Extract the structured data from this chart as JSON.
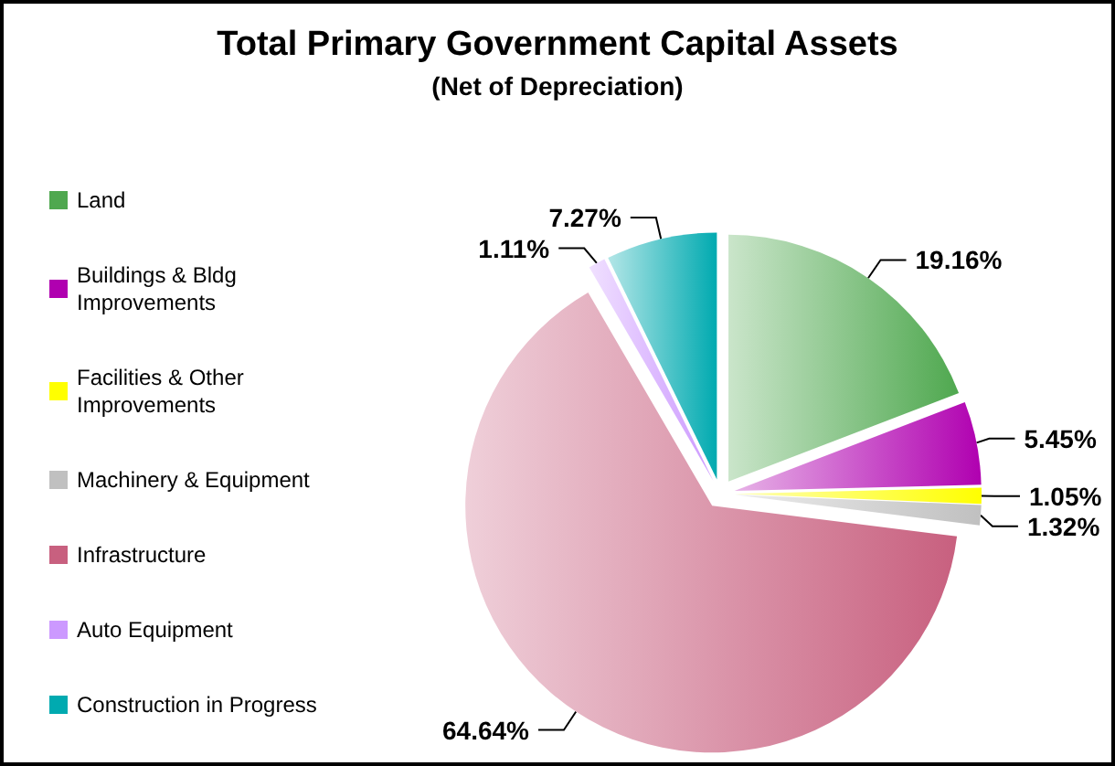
{
  "chart_data": {
    "type": "pie",
    "title": "Total Primary Government Capital Assets",
    "subtitle": "(Net of Depreciation)",
    "categories": [
      "Land",
      "Buildings & Bldg Improvements",
      "Facilities & Other Improvements",
      "Machinery & Equipment",
      "Infrastructure",
      "Auto Equipment",
      "Construction in Progress"
    ],
    "values": [
      19.16,
      5.45,
      1.05,
      1.32,
      64.64,
      1.11,
      7.27
    ],
    "colors": [
      "#4fa84f",
      "#b000b0",
      "#ffff00",
      "#c0c0c0",
      "#c8607f",
      "#cc99ff",
      "#00aab0"
    ],
    "value_labels": [
      "19.16%",
      "5.45%",
      "1.05%",
      "1.32%",
      "64.64%",
      "1.11%",
      "7.27%"
    ],
    "legend": "left"
  }
}
